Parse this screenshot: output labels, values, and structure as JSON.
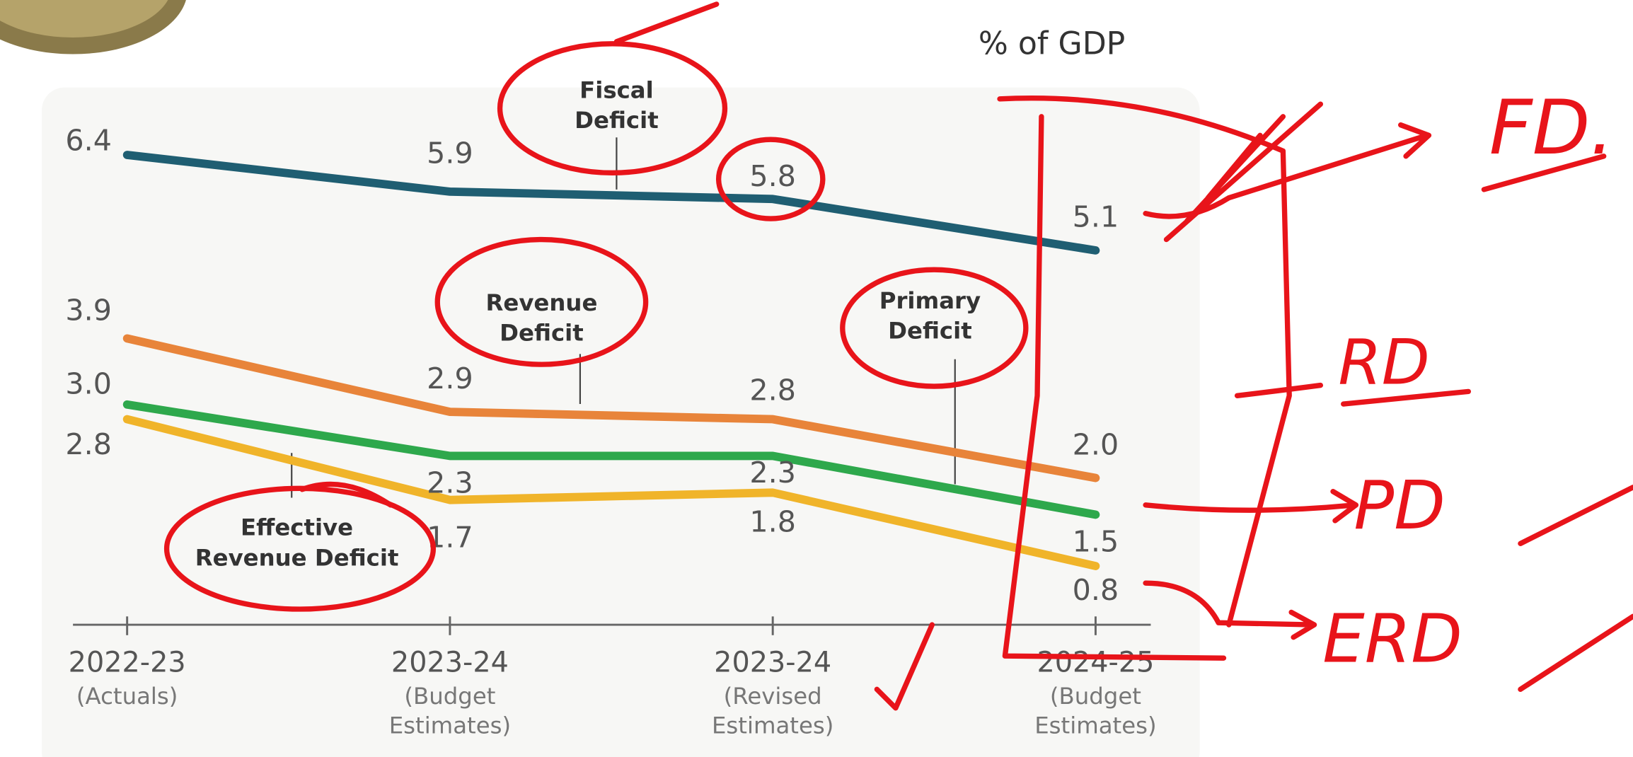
{
  "chart_data": {
    "type": "line",
    "subtitle": "% of GDP",
    "categories": [
      "2022-23",
      "2023-24",
      "2023-24",
      "2024-25"
    ],
    "category_notes": [
      [
        "(Actuals)"
      ],
      [
        "(Budget",
        "Estimates)"
      ],
      [
        "(Revised",
        "Estimates)"
      ],
      [
        "(Budget",
        "Estimates)"
      ]
    ],
    "ylim": [
      0,
      7
    ],
    "series": [
      {
        "name": "Fiscal Deficit",
        "color": "#1f5e72",
        "values": [
          6.4,
          5.9,
          5.8,
          5.1
        ],
        "value_labels": [
          "6.4",
          "5.9",
          "5.8",
          "5.1"
        ]
      },
      {
        "name": "Revenue Deficit",
        "color": "#e8843a",
        "values": [
          3.9,
          2.9,
          2.8,
          2.0
        ],
        "value_labels": [
          "3.9",
          "2.9",
          "2.8",
          "2.0"
        ]
      },
      {
        "name": "Primary Deficit",
        "color": "#2ea84c",
        "values": [
          3.0,
          2.3,
          2.3,
          1.5
        ],
        "value_labels": [
          "3.0",
          "2.3",
          "2.3",
          "1.5"
        ]
      },
      {
        "name": "Effective Revenue Deficit",
        "color": "#f0b42a",
        "values": [
          2.8,
          1.7,
          1.8,
          0.8
        ],
        "value_labels": [
          "2.8",
          "1.7",
          "1.8",
          "0.8"
        ]
      }
    ],
    "annotations": [
      {
        "lines": [
          "Fiscal",
          "Deficit"
        ]
      },
      {
        "lines": [
          "Revenue",
          "Deficit"
        ]
      },
      {
        "lines": [
          "Primary",
          "Deficit"
        ]
      },
      {
        "lines": [
          "Effective",
          "Revenue Deficit"
        ]
      }
    ],
    "handwritten_notes": [
      "FD.",
      "RD",
      "PD",
      "ERD"
    ]
  }
}
